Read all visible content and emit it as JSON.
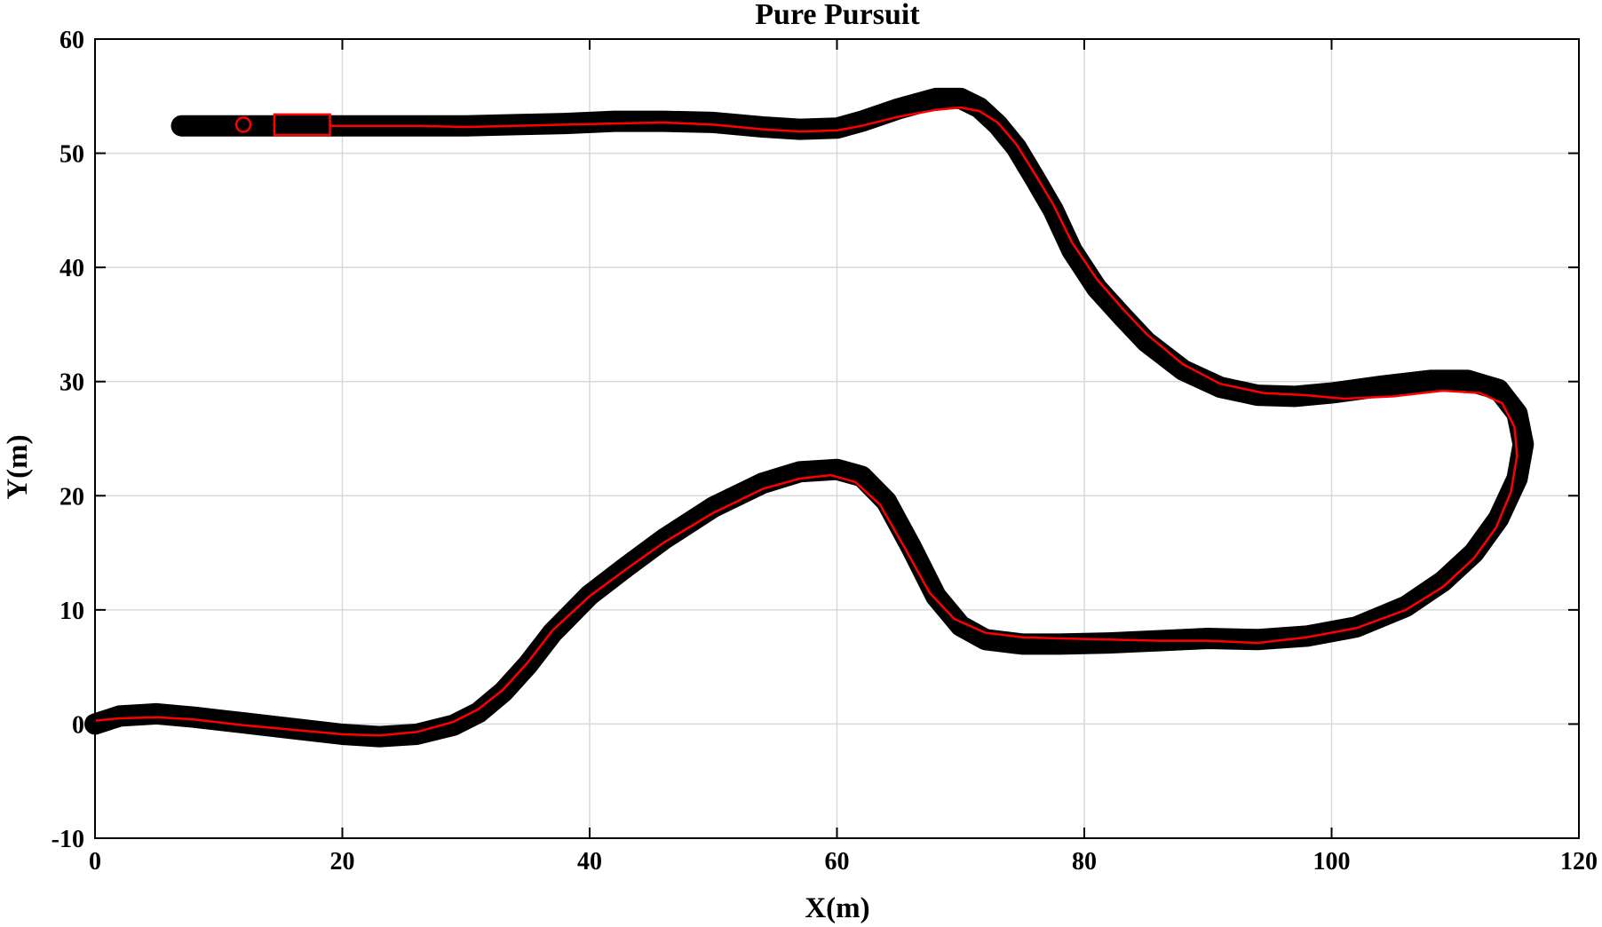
{
  "chart_data": {
    "type": "line",
    "title": "Pure Pursuit",
    "xlabel": "X(m)",
    "ylabel": "Y(m)",
    "xlim": [
      0,
      120
    ],
    "ylim": [
      -10,
      60
    ],
    "xticks": [
      0,
      20,
      40,
      60,
      80,
      100,
      120
    ],
    "yticks": [
      -10,
      0,
      10,
      20,
      30,
      40,
      50,
      60
    ],
    "grid": true,
    "series": [
      {
        "style": "thick-black-markers",
        "color": "#000000",
        "x": [
          0,
          2,
          5,
          8,
          12,
          16,
          20,
          23,
          26,
          29,
          31,
          33,
          35,
          37,
          40,
          43,
          46,
          50,
          54,
          57,
          60,
          62,
          64,
          66,
          68,
          70,
          72,
          75,
          78,
          82,
          86,
          90,
          94,
          98,
          102,
          106,
          109,
          111.5,
          113.5,
          115,
          115.5,
          115,
          113.5,
          111,
          108,
          104,
          100,
          97,
          94,
          91,
          88,
          85,
          83,
          81,
          79,
          77.5,
          76,
          74.5,
          73,
          71.5,
          70,
          68,
          65,
          62,
          60,
          57,
          54,
          50,
          46,
          42,
          38,
          34,
          30,
          26,
          22,
          18,
          14,
          10,
          7
        ],
        "y": [
          0,
          0.7,
          0.9,
          0.6,
          0.1,
          -0.4,
          -0.9,
          -1.1,
          -0.9,
          -0.1,
          1,
          2.8,
          5.2,
          8,
          11.3,
          13.8,
          16.2,
          19,
          21.1,
          22.1,
          22.3,
          21.7,
          19.5,
          15.5,
          11.2,
          8.6,
          7.4,
          7,
          7,
          7.1,
          7.3,
          7.5,
          7.4,
          7.7,
          8.5,
          10.3,
          12.5,
          15,
          18,
          21.5,
          24.5,
          27.2,
          29.3,
          30.1,
          30.1,
          29.6,
          29,
          28.7,
          28.8,
          29.5,
          31,
          33.5,
          35.8,
          38.2,
          41.5,
          45,
          47.8,
          50.5,
          52.5,
          54,
          54.8,
          54.8,
          53.9,
          52.8,
          52.2,
          52.1,
          52.3,
          52.7,
          52.8,
          52.8,
          52.6,
          52.5,
          52.4,
          52.4,
          52.4,
          52.4,
          52.4,
          52.4,
          52.4
        ]
      },
      {
        "style": "thin-red-line",
        "color": "#ff0000",
        "x": [
          0,
          2,
          5,
          8,
          12,
          16,
          20,
          23,
          26,
          29,
          31,
          33,
          35,
          37,
          40,
          43,
          46,
          50,
          54,
          57,
          59.5,
          61.5,
          63.5,
          65.5,
          67.5,
          69.5,
          72,
          75,
          78,
          82,
          86,
          90,
          94,
          98,
          102,
          106,
          109,
          111.5,
          113.3,
          114.5,
          115,
          114.8,
          113.8,
          112,
          109,
          105,
          101,
          98,
          94.5,
          91,
          88,
          85,
          83,
          81,
          79,
          77.5,
          76,
          74.5,
          73,
          71.5,
          70,
          68,
          65,
          62,
          60,
          57,
          54,
          50,
          46,
          42,
          38,
          34,
          30,
          26,
          22,
          19
        ],
        "y": [
          0.3,
          0.5,
          0.6,
          0.4,
          -0.1,
          -0.5,
          -0.9,
          -1,
          -0.7,
          0.2,
          1.3,
          3,
          5.4,
          8.2,
          11.2,
          13.6,
          15.9,
          18.5,
          20.6,
          21.5,
          21.8,
          21.2,
          19.2,
          15.4,
          11.5,
          9.2,
          8,
          7.6,
          7.5,
          7.4,
          7.3,
          7.3,
          7.1,
          7.6,
          8.4,
          10,
          12,
          14.5,
          17.2,
          20.3,
          23.5,
          26,
          28.1,
          29,
          29.2,
          28.7,
          28.5,
          28.8,
          29,
          29.8,
          31.5,
          34.2,
          36.5,
          39,
          42.2,
          45.5,
          48.2,
          50.8,
          52.7,
          53.7,
          54,
          53.8,
          53.2,
          52.4,
          52,
          51.9,
          52.1,
          52.5,
          52.7,
          52.6,
          52.5,
          52.4,
          52.3,
          52.4,
          52.4,
          52.4
        ]
      }
    ],
    "annotations": [
      {
        "type": "circle-marker",
        "color": "#ff0000",
        "x": 12,
        "y": 52.5
      },
      {
        "type": "vehicle-rectangle",
        "color": "#ff0000",
        "x": [
          14.5,
          19
        ],
        "y": [
          51.6,
          53.4
        ]
      }
    ]
  }
}
